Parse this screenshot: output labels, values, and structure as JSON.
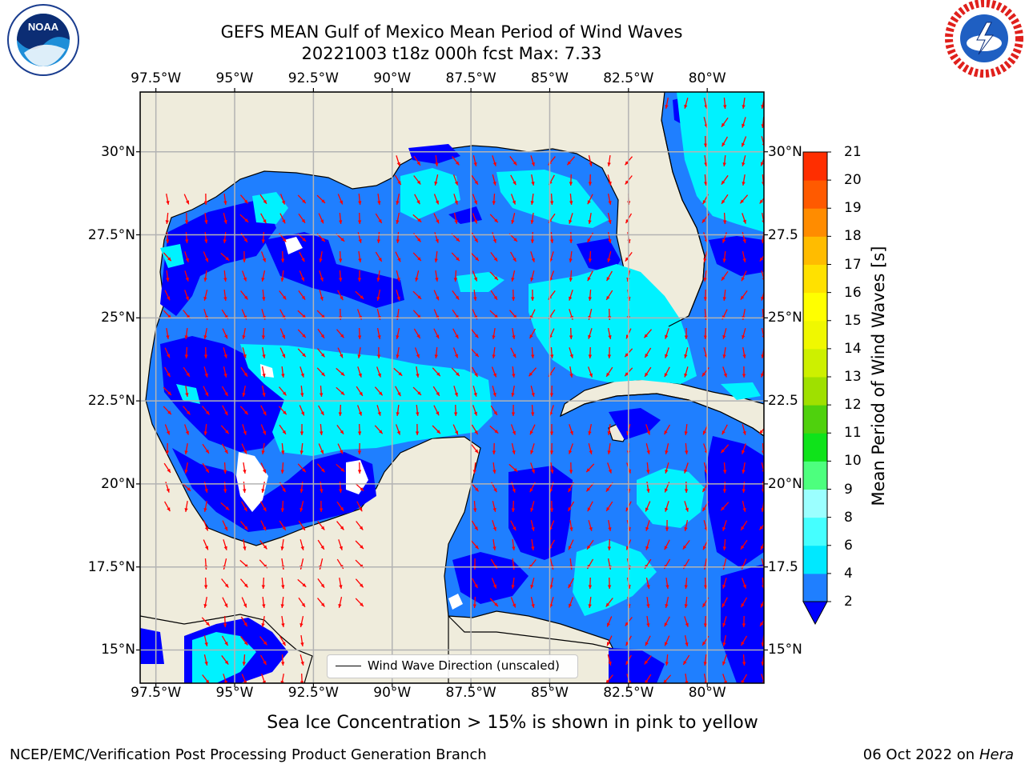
{
  "header": {
    "title_line1": "GEFS MEAN Gulf of Mexico Mean Period of Wind Waves",
    "title_line2": "20221003 t18z 000h fcst   Max: 7.33"
  },
  "logos": {
    "left": {
      "name": "noaa-logo",
      "text": "NOAA",
      "ring_text": "NATIONAL OCEANIC AND ATMOSPHERIC ADMINISTRATION · U.S. DEPARTMENT OF COMMERCE"
    },
    "right": {
      "name": "nws-logo",
      "ring_text": "NATIONAL WEATHER SERVICE"
    }
  },
  "map": {
    "lon_labels": [
      "97.5°W",
      "95°W",
      "92.5°W",
      "90°W",
      "87.5°W",
      "85°W",
      "82.5°W",
      "80°W"
    ],
    "lat_labels_left": [
      "30°N",
      "27.5°N",
      "25°N",
      "22.5°N",
      "20°N",
      "17.5°N",
      "15°N"
    ],
    "lat_labels_right": [
      "30°N",
      "27.5",
      "25°N",
      "22.5",
      "20°N",
      "17.5",
      "15°N"
    ],
    "lon_values": [
      -97.5,
      -95,
      -92.5,
      -90,
      -87.5,
      -85,
      -82.5,
      -80
    ],
    "lat_values": [
      30,
      27.5,
      25,
      22.5,
      20,
      17.5,
      15
    ],
    "extent": {
      "lon_min": -98,
      "lon_max": -78.2,
      "lat_min": 14,
      "lat_max": 31.8
    },
    "legend_label": "Wind Wave Direction (unscaled)",
    "colors": {
      "land": "#efecdc",
      "no_data": "#ffffff",
      "grid": "#b3b3b3",
      "arrow": "#ff0000"
    }
  },
  "colorbar": {
    "title": "Mean Period of Wind Waves [s]",
    "ticks": [
      "2",
      "4",
      "6",
      "8",
      "9",
      "10",
      "11",
      "12",
      "13",
      "14",
      "15",
      "16",
      "17",
      "18",
      "19",
      "20",
      "21"
    ],
    "levels": [
      2,
      4,
      6,
      8,
      9,
      10,
      11,
      12,
      13,
      14,
      15,
      16,
      17,
      18,
      19,
      20,
      21
    ],
    "colors": [
      "#1f7fff",
      "#00e8ff",
      "#45ffff",
      "#9bffff",
      "#4dff7e",
      "#0fe31a",
      "#4fd10d",
      "#9fe000",
      "#cdf000",
      "#f0f800",
      "#ffff00",
      "#ffe100",
      "#ffbc00",
      "#ff8c00",
      "#ff5a00",
      "#ff2e00"
    ],
    "under_color": "#0000ff"
  },
  "caption": "Sea Ice Concentration > 15% is shown in pink to yellow",
  "footer": {
    "left": "NCEP/EMC/Verification Post Processing Product Generation Branch",
    "right_date": "06 Oct 2022 on ",
    "right_host": "Hera"
  }
}
